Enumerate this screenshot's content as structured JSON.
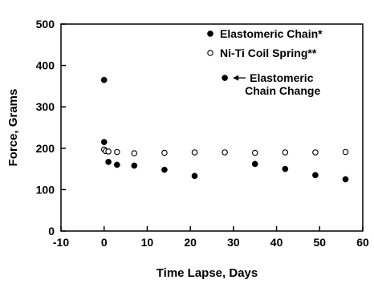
{
  "chart_data": {
    "type": "scatter",
    "title": "",
    "xlabel": "Time Lapse, Days",
    "ylabel": "Force, Grams",
    "xlim": [
      -10,
      60
    ],
    "ylim": [
      0,
      500
    ],
    "xticks": [
      -10,
      0,
      10,
      20,
      30,
      40,
      50,
      60
    ],
    "yticks": [
      0,
      100,
      200,
      300,
      400,
      500
    ],
    "grid": false,
    "legend_position": "top-right",
    "series": [
      {
        "name": "Elastomeric Chain*",
        "marker": "filled-circle",
        "color": "#000000",
        "x": [
          0,
          0,
          1,
          3,
          7,
          14,
          21,
          35,
          42,
          49,
          56
        ],
        "y": [
          365,
          215,
          167,
          160,
          158,
          148,
          133,
          162,
          150,
          135,
          125
        ]
      },
      {
        "name": "Ni-Ti Coil Spring**",
        "marker": "open-circle",
        "color": "#000000",
        "x": [
          0,
          0.4,
          1,
          3,
          7,
          14,
          21,
          28,
          35,
          42,
          49,
          56
        ],
        "y": [
          197,
          193,
          192,
          191,
          188,
          189,
          190,
          190,
          189,
          190,
          190,
          191
        ]
      }
    ],
    "annotations": [
      {
        "text_lines": [
          "Elastomeric",
          "Chain Change"
        ],
        "point": {
          "x": 28,
          "y": 370
        },
        "marker": "filled-circle",
        "arrow": "left"
      }
    ]
  }
}
